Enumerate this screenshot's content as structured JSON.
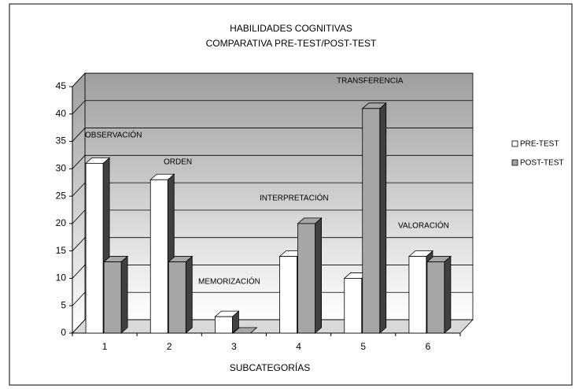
{
  "chart_data": {
    "type": "bar3d",
    "title": [
      "HABILIDADES COGNITIVAS",
      "COMPARATIVA PRE-TEST/POST-TEST"
    ],
    "x_label": "SUBCATEGORÍAS",
    "categories": [
      "1",
      "2",
      "3",
      "4",
      "5",
      "6"
    ],
    "annotations": [
      "OBSERVACIÓN",
      "ORDEN",
      "MEMORIZACIÓN",
      "INTERPRETACIÓN",
      "TRANSFERENCIA",
      "VALORACIÓN"
    ],
    "series": [
      {
        "name": "PRE-TEST",
        "color": "#ffffff",
        "values": [
          31,
          28,
          3,
          14,
          10,
          14
        ]
      },
      {
        "name": "POST-TEST",
        "color": "#a6a6a6",
        "values": [
          13,
          13,
          0,
          20,
          41,
          13
        ]
      }
    ],
    "ylim": [
      0,
      45
    ],
    "yticks": [
      0,
      5,
      10,
      15,
      20,
      25,
      30,
      35,
      40,
      45
    ],
    "grid": true,
    "legend": "right"
  }
}
